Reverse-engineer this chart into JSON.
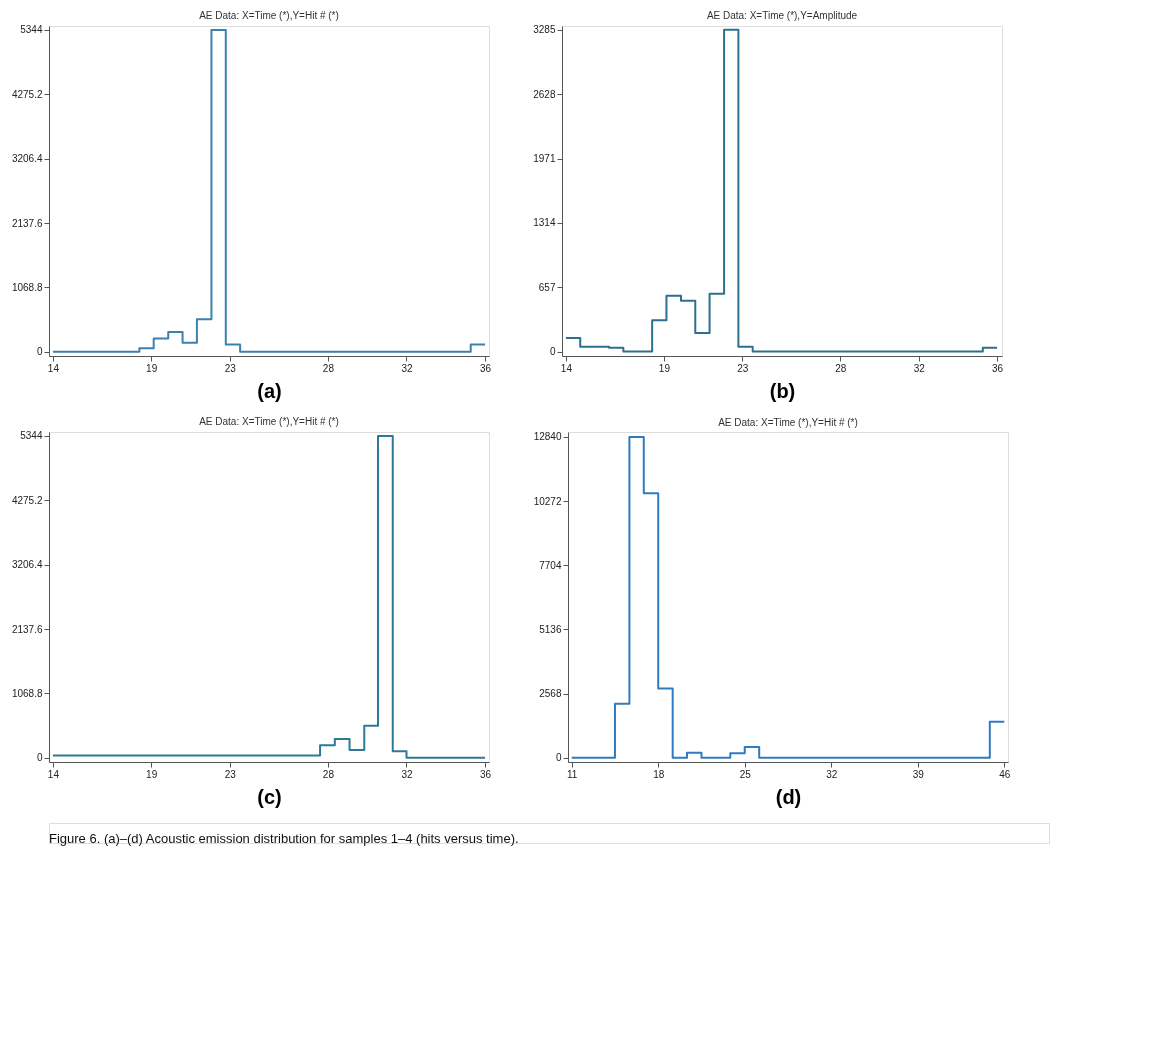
{
  "chart_data": [
    {
      "type": "histogram",
      "title": "AE Data: X=Time (*),Y=Hit # (*)",
      "xlabel": "(a)",
      "color": "#3a80b0",
      "bins": [
        14,
        14.73,
        15.47,
        16.2,
        16.93,
        17.67,
        18.4,
        19.13,
        19.87,
        20.6,
        21.33,
        22.07,
        22.8,
        23.53,
        24.27,
        25,
        25.73,
        26.47,
        27.2,
        27.93,
        28.67,
        29.4,
        30.13,
        30.87,
        31.6,
        32.33,
        33.07,
        33.8,
        34.53,
        35.27,
        36
      ],
      "values": [
        0,
        0,
        0,
        0,
        0,
        0,
        60,
        220,
        330,
        150,
        540,
        5344,
        120,
        0,
        0,
        0,
        0,
        0,
        0,
        0,
        0,
        0,
        0,
        0,
        0,
        0,
        0,
        0,
        0,
        120
      ],
      "xlim": [
        13.8,
        36.2
      ],
      "xticks": [
        14,
        19,
        23,
        28,
        32,
        36
      ],
      "ylim": [
        -70,
        5410
      ],
      "yticks": [
        0,
        1068.8,
        2137.6,
        3206.4,
        4275.2,
        5344
      ]
    },
    {
      "type": "histogram",
      "title": "AE Data: X=Time (*),Y=Amplitude",
      "xlabel": "(b)",
      "color": "#2d6f8f",
      "bins": [
        14,
        14.73,
        15.47,
        16.2,
        16.93,
        17.67,
        18.4,
        19.13,
        19.87,
        20.6,
        21.33,
        22.07,
        22.8,
        23.53,
        24.27,
        25,
        25.73,
        26.47,
        27.2,
        27.93,
        28.67,
        29.4,
        30.13,
        30.87,
        31.6,
        32.33,
        33.07,
        33.8,
        34.53,
        35.27,
        36
      ],
      "values": [
        140,
        50,
        50,
        40,
        0,
        0,
        320,
        570,
        520,
        190,
        590,
        3285,
        50,
        0,
        0,
        0,
        0,
        0,
        0,
        0,
        0,
        0,
        0,
        0,
        0,
        0,
        0,
        0,
        0,
        40
      ],
      "xlim": [
        13.8,
        36.25
      ],
      "xticks": [
        14,
        19,
        23,
        28,
        32,
        36
      ],
      "ylim": [
        -45,
        3324
      ],
      "yticks": [
        0,
        657,
        1314,
        1971,
        2628,
        3285
      ]
    },
    {
      "type": "histogram",
      "title": "AE Data: X=Time (*),Y=Hit # (*)",
      "xlabel": "(c)",
      "color": "#2d7a96",
      "bins": [
        14,
        27.6,
        28.35,
        29.1,
        29.85,
        30.55,
        31.3,
        32.0,
        36
      ],
      "values": [
        40,
        210,
        310,
        130,
        530,
        5344,
        110,
        0
      ],
      "xlim": [
        13.8,
        36.2
      ],
      "xticks": [
        14,
        19,
        23,
        28,
        32,
        36
      ],
      "ylim": [
        -70,
        5410
      ],
      "yticks": [
        0,
        1068.8,
        2137.6,
        3206.4,
        4275.2,
        5344
      ]
    },
    {
      "type": "histogram",
      "title": "AE Data: X=Time (*),Y=Hit # (*)",
      "xlabel": "(d)",
      "color": "#2f7bbf",
      "bins": [
        11,
        12.17,
        13.33,
        14.5,
        15.67,
        16.83,
        18,
        19.17,
        20.33,
        21.5,
        22.67,
        23.83,
        25,
        26.17,
        27.33,
        28.5,
        29.67,
        30.83,
        32,
        33.17,
        34.33,
        35.5,
        36.67,
        37.83,
        39,
        40.17,
        41.33,
        42.5,
        43.67,
        44.83,
        46
      ],
      "values": [
        0,
        0,
        0,
        2160,
        12840,
        10590,
        2770,
        0,
        200,
        0,
        0,
        180,
        430,
        0,
        0,
        0,
        0,
        0,
        0,
        0,
        0,
        0,
        0,
        0,
        0,
        0,
        0,
        0,
        0,
        1440
      ],
      "xlim": [
        10.7,
        46.3
      ],
      "xticks": [
        11,
        18,
        25,
        32,
        39,
        46
      ],
      "ylim": [
        -170,
        13040
      ],
      "yticks": [
        0,
        2568,
        5136,
        7704,
        10272,
        12840
      ],
      "annotations": [
        "Figure 6. (a)–(d) Acoustic emission distribution for samples 1–4 (hits versus time)."
      ]
    }
  ]
}
